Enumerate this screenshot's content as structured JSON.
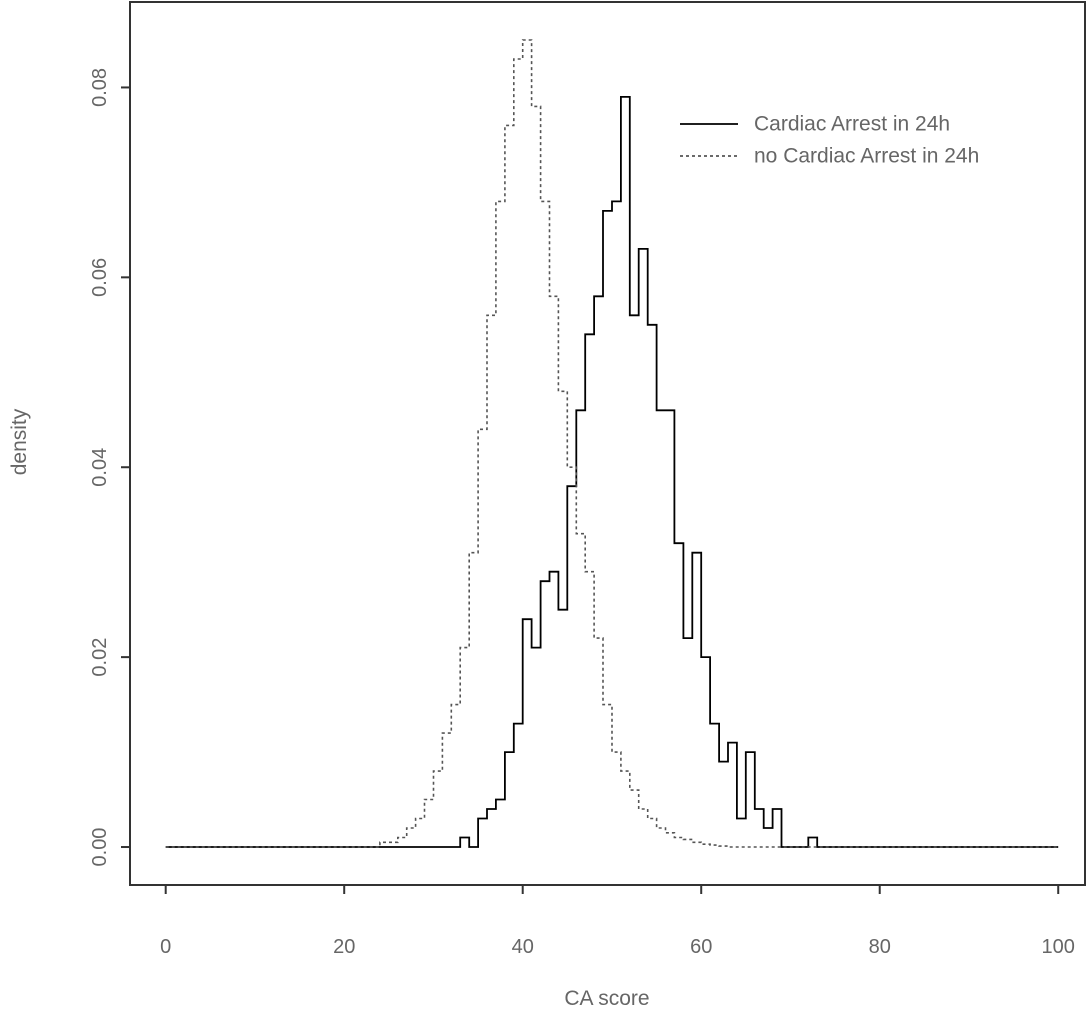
{
  "chart_data": {
    "type": "line",
    "title": "",
    "xlabel": "CA score",
    "ylabel": "density",
    "xlim": [
      -4,
      103
    ],
    "ylim": [
      -0.004,
      0.089
    ],
    "x_ticks": [
      0,
      20,
      40,
      60,
      80,
      100
    ],
    "x_tick_labels": [
      "0",
      "20",
      "40",
      "60",
      "80",
      "100"
    ],
    "y_ticks": [
      0.0,
      0.02,
      0.04,
      0.06,
      0.08
    ],
    "y_tick_labels": [
      "0.00",
      "0.02",
      "0.04",
      "0.06",
      "0.08"
    ],
    "grid": false,
    "legend_position": "top-right",
    "step_style": "histogram step",
    "series": [
      {
        "name": "Cardiac Arrest in 24h",
        "line_style": "solid",
        "color": "#000000",
        "x": [
          0,
          24,
          25,
          26,
          27,
          28,
          29,
          30,
          31,
          32,
          33,
          34,
          35,
          36,
          37,
          38,
          39,
          40,
          41,
          42,
          43,
          44,
          45,
          46,
          47,
          48,
          49,
          50,
          51,
          52,
          53,
          54,
          55,
          56,
          57,
          58,
          59,
          60,
          61,
          62,
          63,
          64,
          65,
          66,
          67,
          68,
          69,
          70,
          71,
          72,
          73,
          100
        ],
        "y": [
          0,
          0,
          0,
          0,
          0,
          0,
          0,
          0,
          0,
          0,
          0.001,
          0,
          0.003,
          0.004,
          0.005,
          0.01,
          0.013,
          0.024,
          0.021,
          0.028,
          0.029,
          0.025,
          0.038,
          0.046,
          0.054,
          0.058,
          0.067,
          0.068,
          0.079,
          0.056,
          0.063,
          0.055,
          0.046,
          0.046,
          0.032,
          0.022,
          0.031,
          0.02,
          0.013,
          0.009,
          0.011,
          0.003,
          0.01,
          0.004,
          0.002,
          0.004,
          0,
          0,
          0,
          0.001,
          0,
          0
        ]
      },
      {
        "name": "no Cardiac Arrest in 24h",
        "line_style": "dashed",
        "color": "#555555",
        "x": [
          0,
          20,
          22,
          24,
          26,
          27,
          28,
          29,
          30,
          31,
          32,
          33,
          34,
          35,
          36,
          37,
          38,
          39,
          40,
          41,
          42,
          43,
          44,
          45,
          46,
          47,
          48,
          49,
          50,
          51,
          52,
          53,
          54,
          55,
          56,
          57,
          58,
          59,
          60,
          61,
          62,
          63,
          64,
          65,
          66,
          67,
          68,
          69,
          70,
          72,
          75,
          80,
          100
        ],
        "y": [
          0,
          0,
          0,
          0.0005,
          0.001,
          0.002,
          0.003,
          0.005,
          0.008,
          0.012,
          0.015,
          0.021,
          0.031,
          0.044,
          0.056,
          0.068,
          0.076,
          0.083,
          0.085,
          0.078,
          0.068,
          0.058,
          0.048,
          0.04,
          0.033,
          0.029,
          0.022,
          0.015,
          0.01,
          0.008,
          0.006,
          0.004,
          0.003,
          0.002,
          0.0015,
          0.001,
          0.0008,
          0.0005,
          0.0003,
          0.0002,
          0.0001,
          0,
          0,
          0,
          0,
          0,
          0,
          0,
          0,
          0,
          0,
          0,
          0
        ]
      }
    ]
  }
}
